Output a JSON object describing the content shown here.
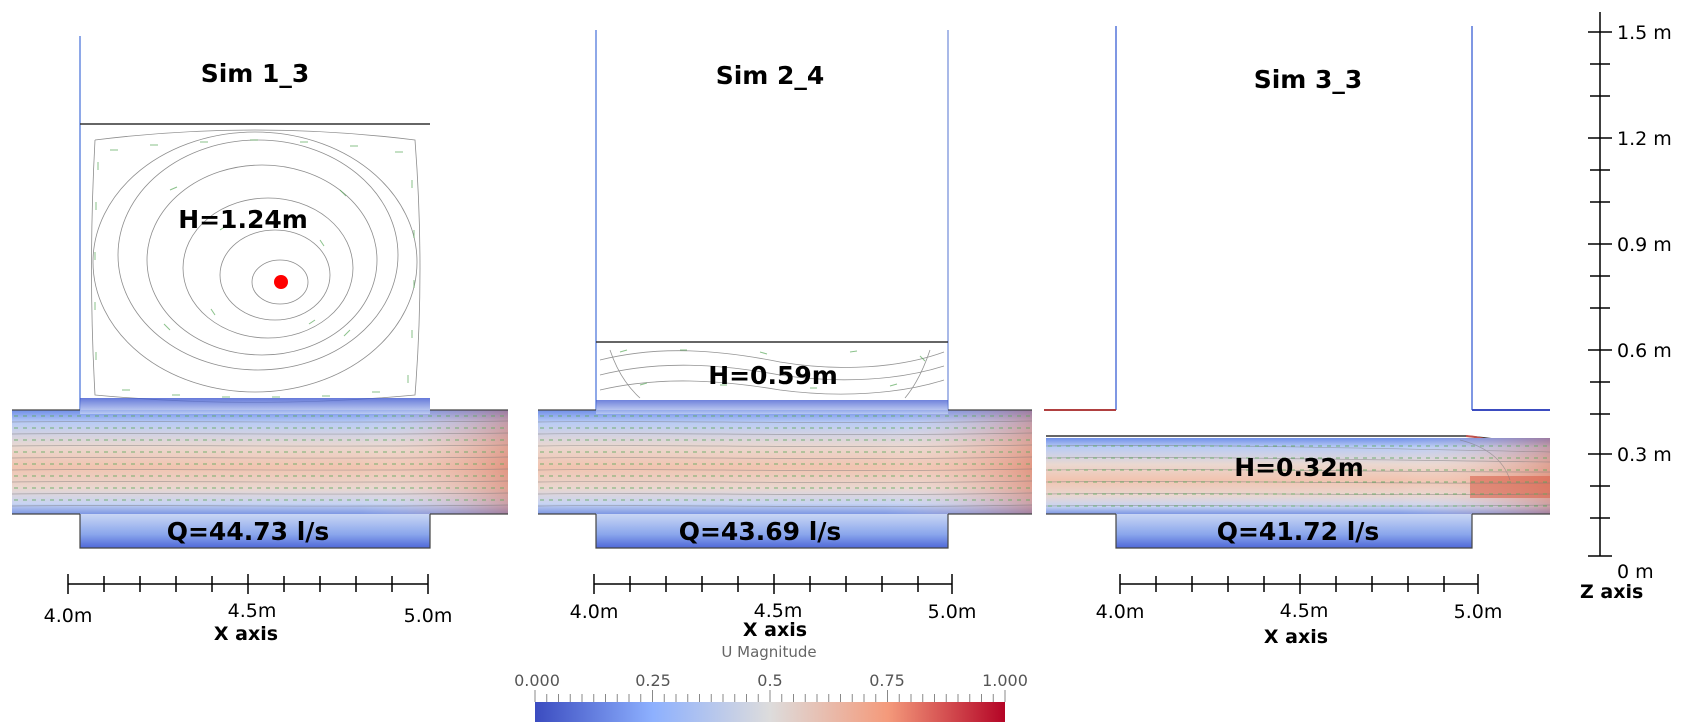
{
  "panels": [
    {
      "title": "Sim 1_3",
      "height_label": "H=1.24m",
      "flow_label": "Q=44.73 l/s",
      "water_level_m": 1.24
    },
    {
      "title": "Sim 2_4",
      "height_label": "H=0.59m",
      "flow_label": "Q=43.69 l/s",
      "water_level_m": 0.59
    },
    {
      "title": "Sim 3_3",
      "height_label": "H=0.32m",
      "flow_label": "Q=41.72 l/s",
      "water_level_m": 0.32
    }
  ],
  "x_axis": {
    "title": "X axis",
    "tick_labels": [
      "4.0m",
      "4.5m",
      "5.0m"
    ]
  },
  "z_axis": {
    "title": "Z axis",
    "tick_labels": [
      "1.5 m",
      "1.2 m",
      "0.9 m",
      "0.6 m",
      "0.3 m",
      "0 m"
    ]
  },
  "colorbar": {
    "title": "U Magnitude",
    "tick_labels": [
      "0.000",
      "0.25",
      "0.5",
      "0.75",
      "1.000"
    ],
    "colors": [
      "#3b4cc0",
      "#8db0fe",
      "#dddcdc",
      "#f49a7b",
      "#b40426"
    ]
  },
  "marker": {
    "color": "#ff0000"
  },
  "vector_color": "#4caf50",
  "streamline_color": "#555555"
}
